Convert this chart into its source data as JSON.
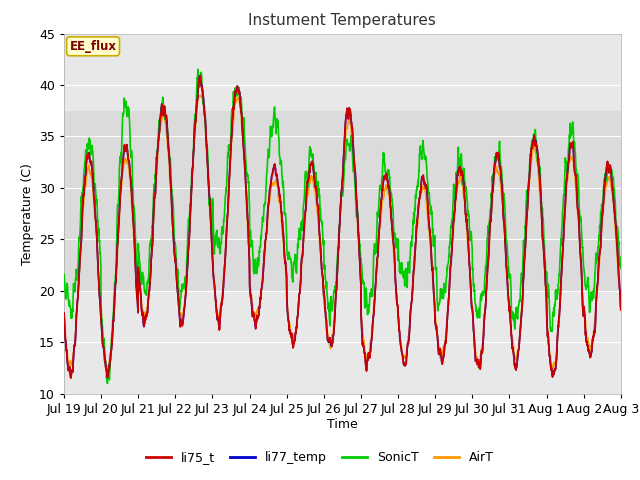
{
  "title": "Instument Temperatures",
  "xlabel": "Time",
  "ylabel": "Temperature (C)",
  "ylim": [
    10,
    45
  ],
  "n_days": 15,
  "background_color": "#e8e8e8",
  "figure_bg": "#ffffff",
  "plot_bg": "#e8e8e8",
  "grid_color": "#ffffff",
  "shaded_band": [
    20,
    37.5
  ],
  "annotation_text": "EE_flux",
  "annotation_bg": "#ffffcc",
  "annotation_border": "#ccaa00",
  "annotation_text_color": "#800000",
  "tick_labels": [
    "Jul 19",
    "Jul 20",
    "Jul 21",
    "Jul 22",
    "Jul 23",
    "Jul 24",
    "Jul 25",
    "Jul 26",
    "Jul 27",
    "Jul 28",
    "Jul 29",
    "Jul 30",
    "Jul 31",
    "Aug 1",
    "Aug 2",
    "Aug 3"
  ],
  "series": {
    "li75_t": {
      "color": "#cc0000",
      "linewidth": 1.2
    },
    "li77_temp": {
      "color": "#0000cc",
      "linewidth": 1.2
    },
    "SonicT": {
      "color": "#00cc00",
      "linewidth": 1.2
    },
    "AirT": {
      "color": "#ff9900",
      "linewidth": 1.2
    }
  },
  "legend_labels": [
    "li75_t",
    "li77_temp",
    "SonicT",
    "AirT"
  ],
  "legend_colors": [
    "#cc0000",
    "#0000cc",
    "#00cc00",
    "#ff9900"
  ],
  "yticks": [
    10,
    15,
    20,
    25,
    30,
    35,
    40,
    45
  ]
}
